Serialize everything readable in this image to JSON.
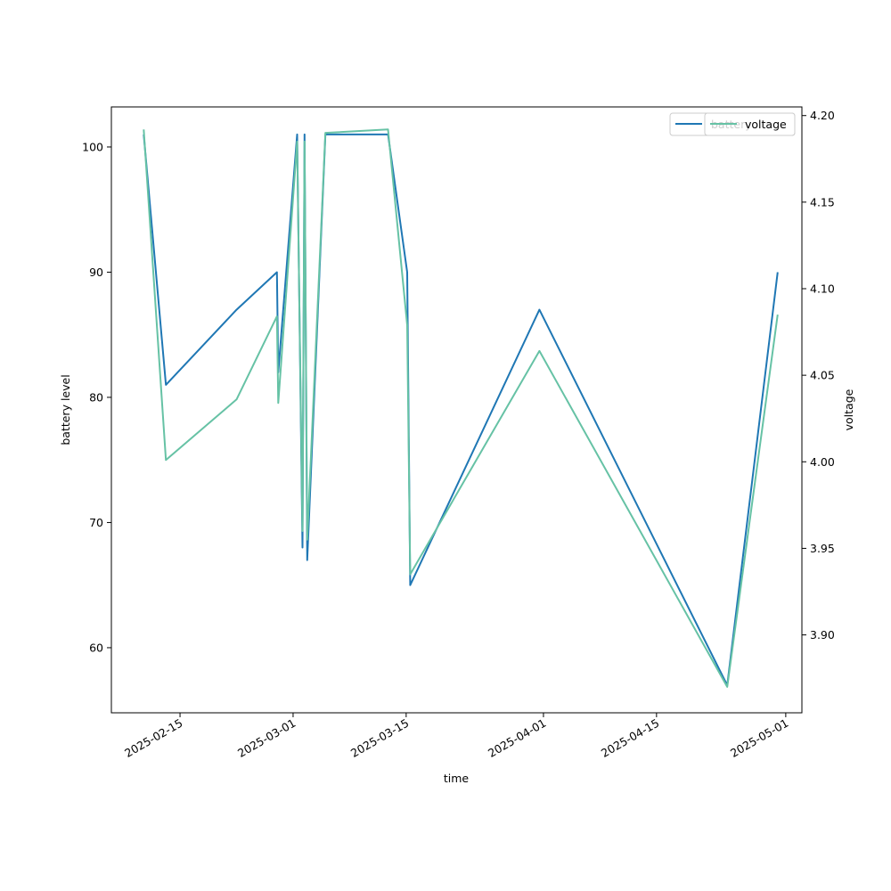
{
  "chart_data": {
    "type": "line",
    "xlabel": "time",
    "ylabel": "battery level",
    "y2label": "voltage",
    "x_tick_labels": [
      "2025-02-15",
      "2025-03-01",
      "2025-03-15",
      "2025-04-01",
      "2025-04-15",
      "2025-05-01"
    ],
    "x_tick_dates": [
      "2025-02-15",
      "2025-03-01",
      "2025-03-15",
      "2025-04-01",
      "2025-04-15",
      "2025-05-01"
    ],
    "xlim": [
      "2025-02-06T12:00",
      "2025-05-03T00:00"
    ],
    "ylim": [
      54.8,
      103.2
    ],
    "y_ticks": [
      60,
      70,
      80,
      90,
      100
    ],
    "y2lim": [
      3.855,
      4.205
    ],
    "y2_ticks": [
      3.9,
      3.95,
      4.0,
      4.05,
      4.1,
      4.15,
      4.2
    ],
    "grid": false,
    "legend_position": "top-right",
    "series": [
      {
        "name": "battery",
        "axis": "left",
        "color": "#1f77b4",
        "points": [
          [
            "2025-02-10T12:00",
            101
          ],
          [
            "2025-02-13T06:00",
            81
          ],
          [
            "2025-02-22T00:00",
            87
          ],
          [
            "2025-02-27T00:00",
            90
          ],
          [
            "2025-02-27T04:00",
            82
          ],
          [
            "2025-03-01T12:00",
            101
          ],
          [
            "2025-03-02T04:00",
            68
          ],
          [
            "2025-03-02T10:00",
            101
          ],
          [
            "2025-03-02T18:00",
            67
          ],
          [
            "2025-03-05T00:00",
            101
          ],
          [
            "2025-03-12T18:00",
            101
          ],
          [
            "2025-03-15T03:00",
            90
          ],
          [
            "2025-03-15T12:00",
            65
          ],
          [
            "2025-03-31T12:00",
            87
          ],
          [
            "2025-04-23T18:00",
            57
          ],
          [
            "2025-04-30T00:00",
            90
          ]
        ]
      },
      {
        "name": "voltage",
        "axis": "right",
        "color": "#66c2a5",
        "points": [
          [
            "2025-02-10T12:00",
            4.192
          ],
          [
            "2025-02-13T06:00",
            4.001
          ],
          [
            "2025-02-22T00:00",
            4.036
          ],
          [
            "2025-02-27T00:00",
            4.084
          ],
          [
            "2025-02-27T04:00",
            4.034
          ],
          [
            "2025-03-01T12:00",
            4.185
          ],
          [
            "2025-03-02T04:00",
            3.96
          ],
          [
            "2025-03-02T10:00",
            4.185
          ],
          [
            "2025-03-02T18:00",
            3.955
          ],
          [
            "2025-03-05T00:00",
            4.19
          ],
          [
            "2025-03-12T18:00",
            4.192
          ],
          [
            "2025-03-15T03:00",
            4.079
          ],
          [
            "2025-03-15T12:00",
            3.935
          ],
          [
            "2025-03-31T12:00",
            4.064
          ],
          [
            "2025-04-23T18:00",
            3.87
          ],
          [
            "2025-04-30T00:00",
            4.085
          ]
        ]
      }
    ]
  }
}
